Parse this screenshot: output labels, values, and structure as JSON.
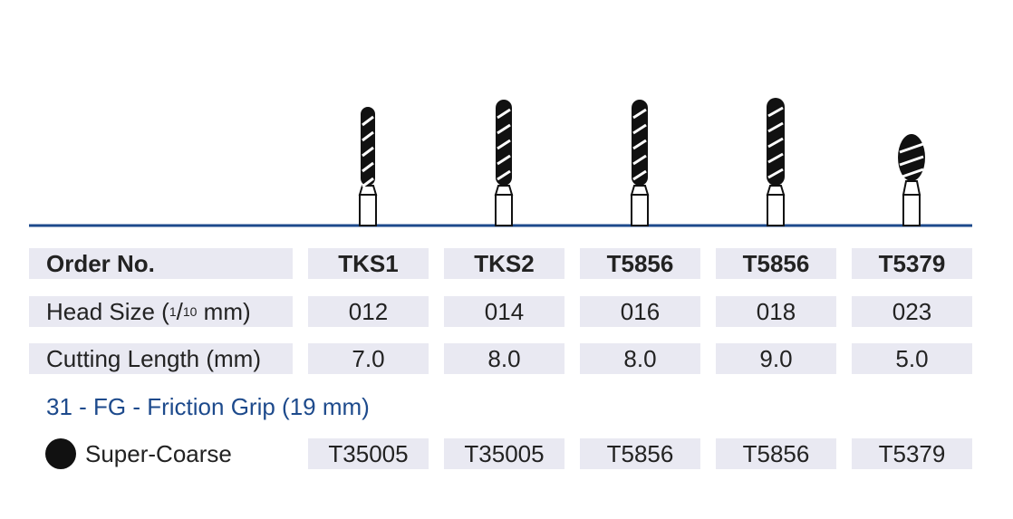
{
  "table": {
    "header": {
      "label": "Order No.",
      "cells": [
        "TKS1",
        "TKS2",
        "T5856",
        "T5856",
        "T5379"
      ]
    },
    "head_size": {
      "label_parts": [
        "Head Size (",
        "1",
        "/",
        "10",
        " mm)"
      ],
      "cells": [
        "012",
        "014",
        "016",
        "018",
        "023"
      ]
    },
    "cutting_length": {
      "label": "Cutting Length (mm)",
      "cells": [
        "7.0",
        "8.0",
        "8.0",
        "9.0",
        "5.0"
      ]
    }
  },
  "section": "31 - FG - Friction Grip (19 mm)",
  "grit": {
    "label": "Super-Coarse",
    "cells": [
      "T35005",
      "T35005",
      "T5856",
      "T5856",
      "T5379"
    ]
  }
}
